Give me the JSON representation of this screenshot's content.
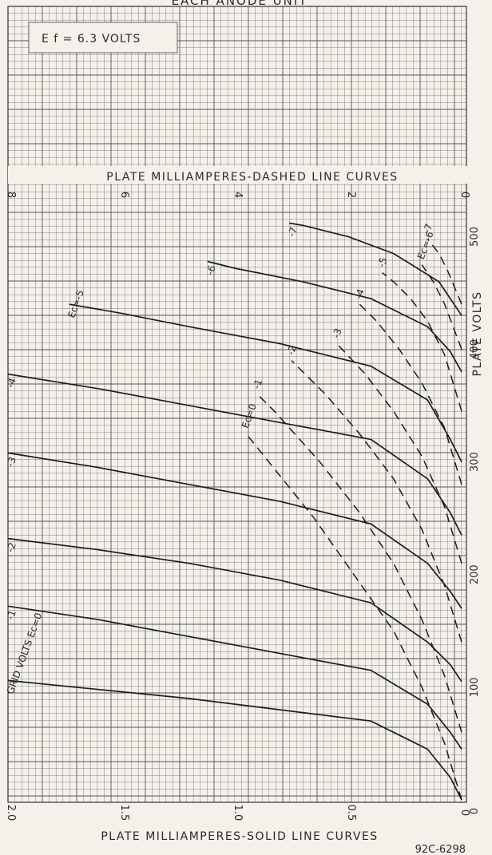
{
  "header": {
    "title": "EACH ANODE UNIT",
    "condition": "E f = 6.3 VOLTS"
  },
  "chart_data": {
    "type": "line",
    "top_axis_label": "PLATE MILLIAMPERES-DASHED LINE CURVES",
    "bottom_axis_label": "PLATE MILLIAMPERES-SOLID LINE CURVES",
    "right_axis_label": "PLATE VOLTS",
    "figure_code": "92C-6298",
    "top_ticks": [
      "8",
      "6",
      "4",
      "2",
      "0"
    ],
    "bottom_ticks": [
      "2.0",
      "1.5",
      "1.0",
      "0.5",
      "0"
    ],
    "right_ticks": [
      "100",
      "200",
      "300",
      "400",
      "500"
    ],
    "dashed_scale_max": 8,
    "solid_scale_max": 2.0,
    "plate_volts_max": 540,
    "grid": true,
    "solid_series": [
      {
        "label": "GRID VOLTS Ec=0",
        "points": [
          [
            0,
            0
          ],
          [
            0.05,
            20
          ],
          [
            0.15,
            45
          ],
          [
            0.4,
            70
          ],
          [
            0.8,
            80
          ],
          [
            1.2,
            90
          ],
          [
            1.6,
            98
          ],
          [
            2.0,
            106
          ]
        ]
      },
      {
        "label": "-1",
        "points": [
          [
            0,
            45
          ],
          [
            0.05,
            60
          ],
          [
            0.15,
            85
          ],
          [
            0.4,
            115
          ],
          [
            0.8,
            130
          ],
          [
            1.2,
            145
          ],
          [
            1.6,
            160
          ],
          [
            2.0,
            172
          ]
        ]
      },
      {
        "label": "-2",
        "points": [
          [
            0,
            105
          ],
          [
            0.05,
            120
          ],
          [
            0.15,
            140
          ],
          [
            0.4,
            175
          ],
          [
            0.8,
            195
          ],
          [
            1.2,
            210
          ],
          [
            1.6,
            222
          ],
          [
            2.0,
            232
          ]
        ]
      },
      {
        "label": "-3",
        "points": [
          [
            0,
            170
          ],
          [
            0.05,
            185
          ],
          [
            0.15,
            210
          ],
          [
            0.4,
            245
          ],
          [
            0.8,
            265
          ],
          [
            1.2,
            280
          ],
          [
            1.6,
            295
          ],
          [
            2.0,
            308
          ]
        ]
      },
      {
        "label": "-4",
        "points": [
          [
            0,
            235
          ],
          [
            0.05,
            255
          ],
          [
            0.15,
            285
          ],
          [
            0.4,
            320
          ],
          [
            0.8,
            335
          ],
          [
            1.2,
            350
          ],
          [
            1.6,
            365
          ],
          [
            2.0,
            378
          ]
        ]
      },
      {
        "label": "Ec=-5",
        "points": [
          [
            0,
            300
          ],
          [
            0.05,
            320
          ],
          [
            0.15,
            355
          ],
          [
            0.4,
            385
          ],
          [
            0.8,
            405
          ],
          [
            1.2,
            420
          ],
          [
            1.5,
            432
          ],
          [
            1.73,
            440
          ]
        ]
      },
      {
        "label": "-6",
        "points": [
          [
            0,
            380
          ],
          [
            0.05,
            398
          ],
          [
            0.15,
            420
          ],
          [
            0.4,
            445
          ],
          [
            0.7,
            460
          ],
          [
            1.0,
            472
          ],
          [
            1.12,
            478
          ]
        ]
      },
      {
        "label": "-7",
        "points": [
          [
            0,
            430
          ],
          [
            0.05,
            445
          ],
          [
            0.1,
            460
          ],
          [
            0.3,
            485
          ],
          [
            0.5,
            500
          ],
          [
            0.7,
            510
          ],
          [
            0.76,
            512
          ]
        ]
      }
    ],
    "dashed_series": [
      {
        "label": "Ec=0",
        "points": [
          [
            0,
            0
          ],
          [
            0.3,
            50
          ],
          [
            0.7,
            100
          ],
          [
            1.2,
            150
          ],
          [
            1.9,
            200
          ],
          [
            2.6,
            250
          ],
          [
            3.4,
            300
          ],
          [
            3.8,
            325
          ]
        ]
      },
      {
        "label": "-1",
        "points": [
          [
            0,
            60
          ],
          [
            0.3,
            110
          ],
          [
            0.7,
            160
          ],
          [
            1.2,
            210
          ],
          [
            1.8,
            255
          ],
          [
            2.5,
            300
          ],
          [
            3.3,
            345
          ],
          [
            3.6,
            360
          ]
        ]
      },
      {
        "label": "-2",
        "points": [
          [
            0,
            140
          ],
          [
            0.3,
            190
          ],
          [
            0.7,
            240
          ],
          [
            1.2,
            285
          ],
          [
            1.8,
            325
          ],
          [
            2.4,
            360
          ],
          [
            3.0,
            390
          ]
        ]
      },
      {
        "label": "-3",
        "points": [
          [
            0,
            210
          ],
          [
            0.3,
            260
          ],
          [
            0.7,
            305
          ],
          [
            1.2,
            345
          ],
          [
            1.7,
            378
          ],
          [
            2.2,
            405
          ]
        ]
      },
      {
        "label": "-4",
        "points": [
          [
            0,
            280
          ],
          [
            0.3,
            330
          ],
          [
            0.7,
            370
          ],
          [
            1.1,
            400
          ],
          [
            1.5,
            425
          ],
          [
            1.8,
            440
          ]
        ]
      },
      {
        "label": "-5",
        "points": [
          [
            0,
            345
          ],
          [
            0.3,
            395
          ],
          [
            0.6,
            425
          ],
          [
            0.9,
            445
          ],
          [
            1.2,
            460
          ],
          [
            1.4,
            468
          ]
        ]
      },
      {
        "label": "Ec=-6",
        "points": [
          [
            0,
            400
          ],
          [
            0.3,
            440
          ],
          [
            0.5,
            460
          ],
          [
            0.7,
            475
          ]
        ]
      },
      {
        "label": "-7",
        "points": [
          [
            0,
            440
          ],
          [
            0.25,
            470
          ],
          [
            0.4,
            485
          ],
          [
            0.6,
            498
          ]
        ]
      }
    ]
  }
}
